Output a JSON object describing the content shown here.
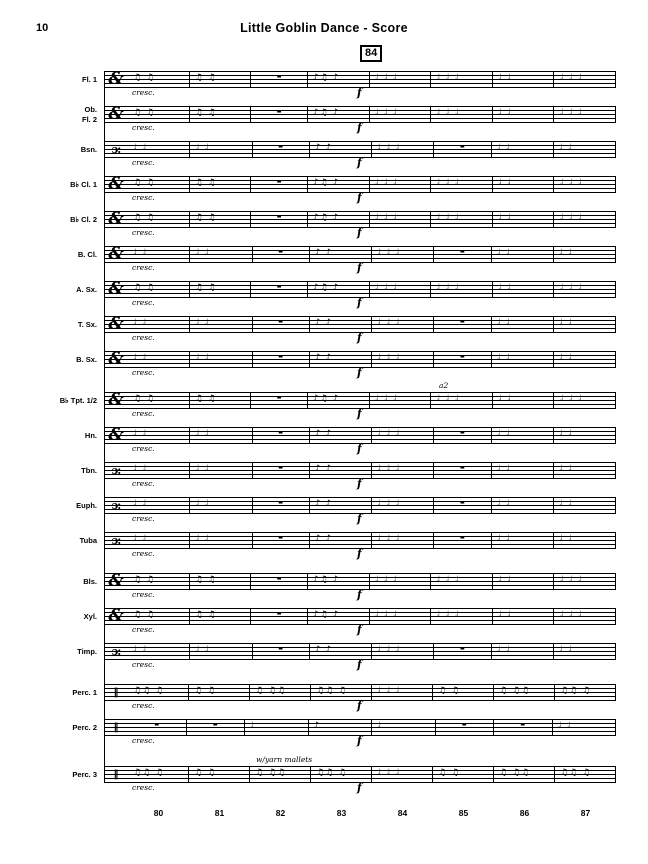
{
  "page": {
    "number": "10",
    "title": "Little Goblin Dance - Score"
  },
  "score": {
    "rehearsal_mark": "84",
    "measure_numbers": [
      "80",
      "81",
      "82",
      "83",
      "84",
      "85",
      "86",
      "87"
    ],
    "clefs": {
      "treble": "&",
      "bass": "ɔ:",
      "percussion": "‖"
    },
    "patterns": {
      "wind": [
        "♫ ♫",
        "♫ ♫",
        "-",
        "♪♫ ♪",
        "♩ ♩ ♩",
        "♩ ♩ ♩",
        "♩ ♩",
        "♩ ♩ ♩"
      ],
      "low": [
        "♩ ♩",
        "♩ ♩",
        "-",
        "♪ ♪",
        "♩ ♩ ♩",
        "-",
        "♩ ♩",
        "♩ ♩"
      ],
      "perc": [
        "♫♫ ♫",
        "♫ ♫",
        "♫ ♫♫",
        "♫♫ ♫",
        "♩ ♩ ♩",
        "♫ ♫",
        "♫ ♫♫",
        "♫♫ ♫"
      ],
      "sparse": [
        "-",
        "-",
        "♩",
        "♪",
        "♩",
        "-",
        "-",
        "♩ ♩"
      ]
    },
    "instruments": [
      {
        "label": "Fl. 1",
        "clef": "treble",
        "pattern": "wind",
        "expression": "cresc.",
        "dynamic": "f"
      },
      {
        "label": "Ob.\nFl. 2",
        "clef": "treble",
        "pattern": "wind",
        "expression": "cresc.",
        "dynamic": "f"
      },
      {
        "label": "Bsn.",
        "clef": "bass",
        "pattern": "low",
        "expression": "cresc.",
        "dynamic": "f"
      },
      {
        "label": "B♭ Cl. 1",
        "clef": "treble",
        "pattern": "wind",
        "expression": "cresc.",
        "dynamic": "f"
      },
      {
        "label": "B♭ Cl. 2",
        "clef": "treble",
        "pattern": "wind",
        "expression": "cresc.",
        "dynamic": "f"
      },
      {
        "label": "B. Cl.",
        "clef": "treble",
        "pattern": "low",
        "expression": "cresc.",
        "dynamic": "f"
      },
      {
        "label": "A. Sx.",
        "clef": "treble",
        "pattern": "wind",
        "expression": "cresc.",
        "dynamic": "f"
      },
      {
        "label": "T. Sx.",
        "clef": "treble",
        "pattern": "low",
        "expression": "cresc.",
        "dynamic": "f"
      },
      {
        "label": "B. Sx.",
        "clef": "treble",
        "pattern": "low",
        "expression": "cresc.",
        "dynamic": "f"
      },
      {
        "label": "B♭ Tpt. 1/2",
        "clef": "treble",
        "pattern": "wind",
        "expression": "cresc.",
        "dynamic": "f",
        "annotation": {
          "text": "a2",
          "measure": 5
        }
      },
      {
        "label": "Hn.",
        "clef": "treble",
        "pattern": "low",
        "expression": "cresc.",
        "dynamic": "f"
      },
      {
        "label": "Tbn.",
        "clef": "bass",
        "pattern": "low",
        "expression": "cresc.",
        "dynamic": "f"
      },
      {
        "label": "Euph.",
        "clef": "bass",
        "pattern": "low",
        "expression": "cresc.",
        "dynamic": "f"
      },
      {
        "label": "Tuba",
        "clef": "bass",
        "pattern": "low",
        "expression": "cresc.",
        "dynamic": "f"
      },
      {
        "label": "Bls.",
        "clef": "treble",
        "pattern": "wind",
        "expression": "cresc.",
        "dynamic": "f"
      },
      {
        "label": "Xyl.",
        "clef": "treble",
        "pattern": "wind",
        "expression": "cresc.",
        "dynamic": "f"
      },
      {
        "label": "Timp.",
        "clef": "bass",
        "pattern": "low",
        "expression": "cresc.",
        "dynamic": "f"
      },
      {
        "label": "Perc. 1",
        "clef": "percussion",
        "pattern": "perc",
        "expression": "cresc.",
        "dynamic": "f"
      },
      {
        "label": "Perc. 2",
        "clef": "percussion",
        "pattern": "sparse",
        "expression": "cresc.",
        "dynamic": "f"
      },
      {
        "label": "Perc. 3",
        "clef": "percussion",
        "pattern": "perc",
        "expression": "cresc.",
        "dynamic": "f",
        "annotation": {
          "text": "w/yarn mallets",
          "measure": 2
        }
      }
    ]
  }
}
